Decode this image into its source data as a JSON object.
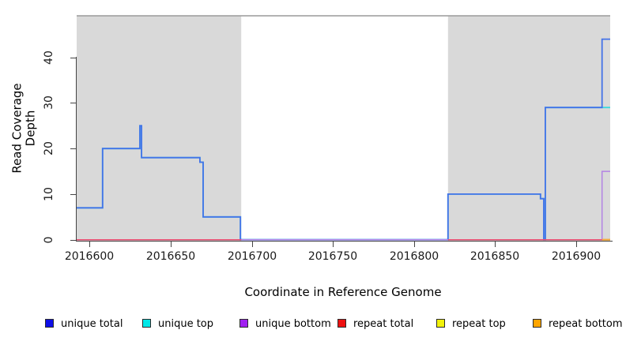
{
  "chart_data": {
    "type": "line",
    "subtype": "step",
    "title": "",
    "xlabel": "Coordinate in Reference Genome",
    "ylabel": "Read Coverage Depth",
    "x_ticks": [
      2016600,
      2016650,
      2016700,
      2016750,
      2016800,
      2016850,
      2016900
    ],
    "y_ticks": [
      0,
      10,
      20,
      30,
      40
    ],
    "xlim": [
      2016592,
      2016921
    ],
    "ylim": [
      0,
      49
    ],
    "grid": false,
    "plot_background": "#ffffff",
    "top_border_color": "#9a9a9a",
    "axis_color": "#454545",
    "shaded_regions": {
      "label": "repeat-region-shading",
      "color": "#d9d9d9",
      "ranges": [
        [
          2016592,
          2016693.5
        ],
        [
          2016821,
          2016921
        ]
      ]
    },
    "series": [
      {
        "name": "unique top",
        "legend_color": "#00e8e8",
        "line_color": "#3cd9dd",
        "line_width": 1.8,
        "steps": [
          [
            2016592,
            7
          ],
          [
            2016608,
            20
          ],
          [
            2016631,
            25
          ],
          [
            2016632,
            18
          ],
          [
            2016668,
            17
          ],
          [
            2016670,
            5
          ],
          [
            2016693,
            0
          ],
          [
            2016821,
            10
          ],
          [
            2016878,
            9
          ],
          [
            2016880,
            0
          ],
          [
            2016881,
            29
          ]
        ]
      },
      {
        "name": "unique total",
        "legend_color": "#0f0fe8",
        "line_color": "#4472e8",
        "line_width": 1.8,
        "steps": [
          [
            2016592,
            7
          ],
          [
            2016608,
            20
          ],
          [
            2016631,
            25
          ],
          [
            2016632,
            18
          ],
          [
            2016668,
            17
          ],
          [
            2016670,
            5
          ],
          [
            2016693,
            0
          ],
          [
            2016821,
            10
          ],
          [
            2016878,
            9
          ],
          [
            2016880,
            0
          ],
          [
            2016881,
            29
          ],
          [
            2016916,
            44
          ]
        ]
      },
      {
        "name": "unique bottom",
        "legend_color": "#a020f0",
        "line_color": "#b383e4",
        "line_width": 1.5,
        "steps": [
          [
            2016592,
            0
          ],
          [
            2016916,
            15
          ]
        ]
      },
      {
        "name": "repeat total",
        "legend_color": "#ee1111",
        "line_color": "#e64a6e",
        "line_width": 1.5,
        "steps": [
          [
            2016592,
            0
          ]
        ],
        "visible_spans": [
          [
            2016592,
            2016693.5
          ],
          [
            2016821,
            2016921
          ]
        ]
      },
      {
        "name": "repeat top",
        "legend_color": "#f2f20a",
        "line_color": "#f2f20a",
        "line_width": 1.5,
        "steps": [
          [
            2016592,
            0
          ]
        ],
        "visible_spans": []
      },
      {
        "name": "repeat bottom",
        "legend_color": "#ffa500",
        "line_color": "#f2a93b",
        "line_width": 2.2,
        "steps": [
          [
            2016592,
            0
          ]
        ],
        "visible_spans": [
          [
            2016916,
            2016921
          ]
        ]
      }
    ],
    "legend": {
      "position": "bottom",
      "items": [
        "unique total",
        "unique top",
        "unique bottom",
        "repeat total",
        "repeat top",
        "repeat bottom"
      ]
    }
  }
}
